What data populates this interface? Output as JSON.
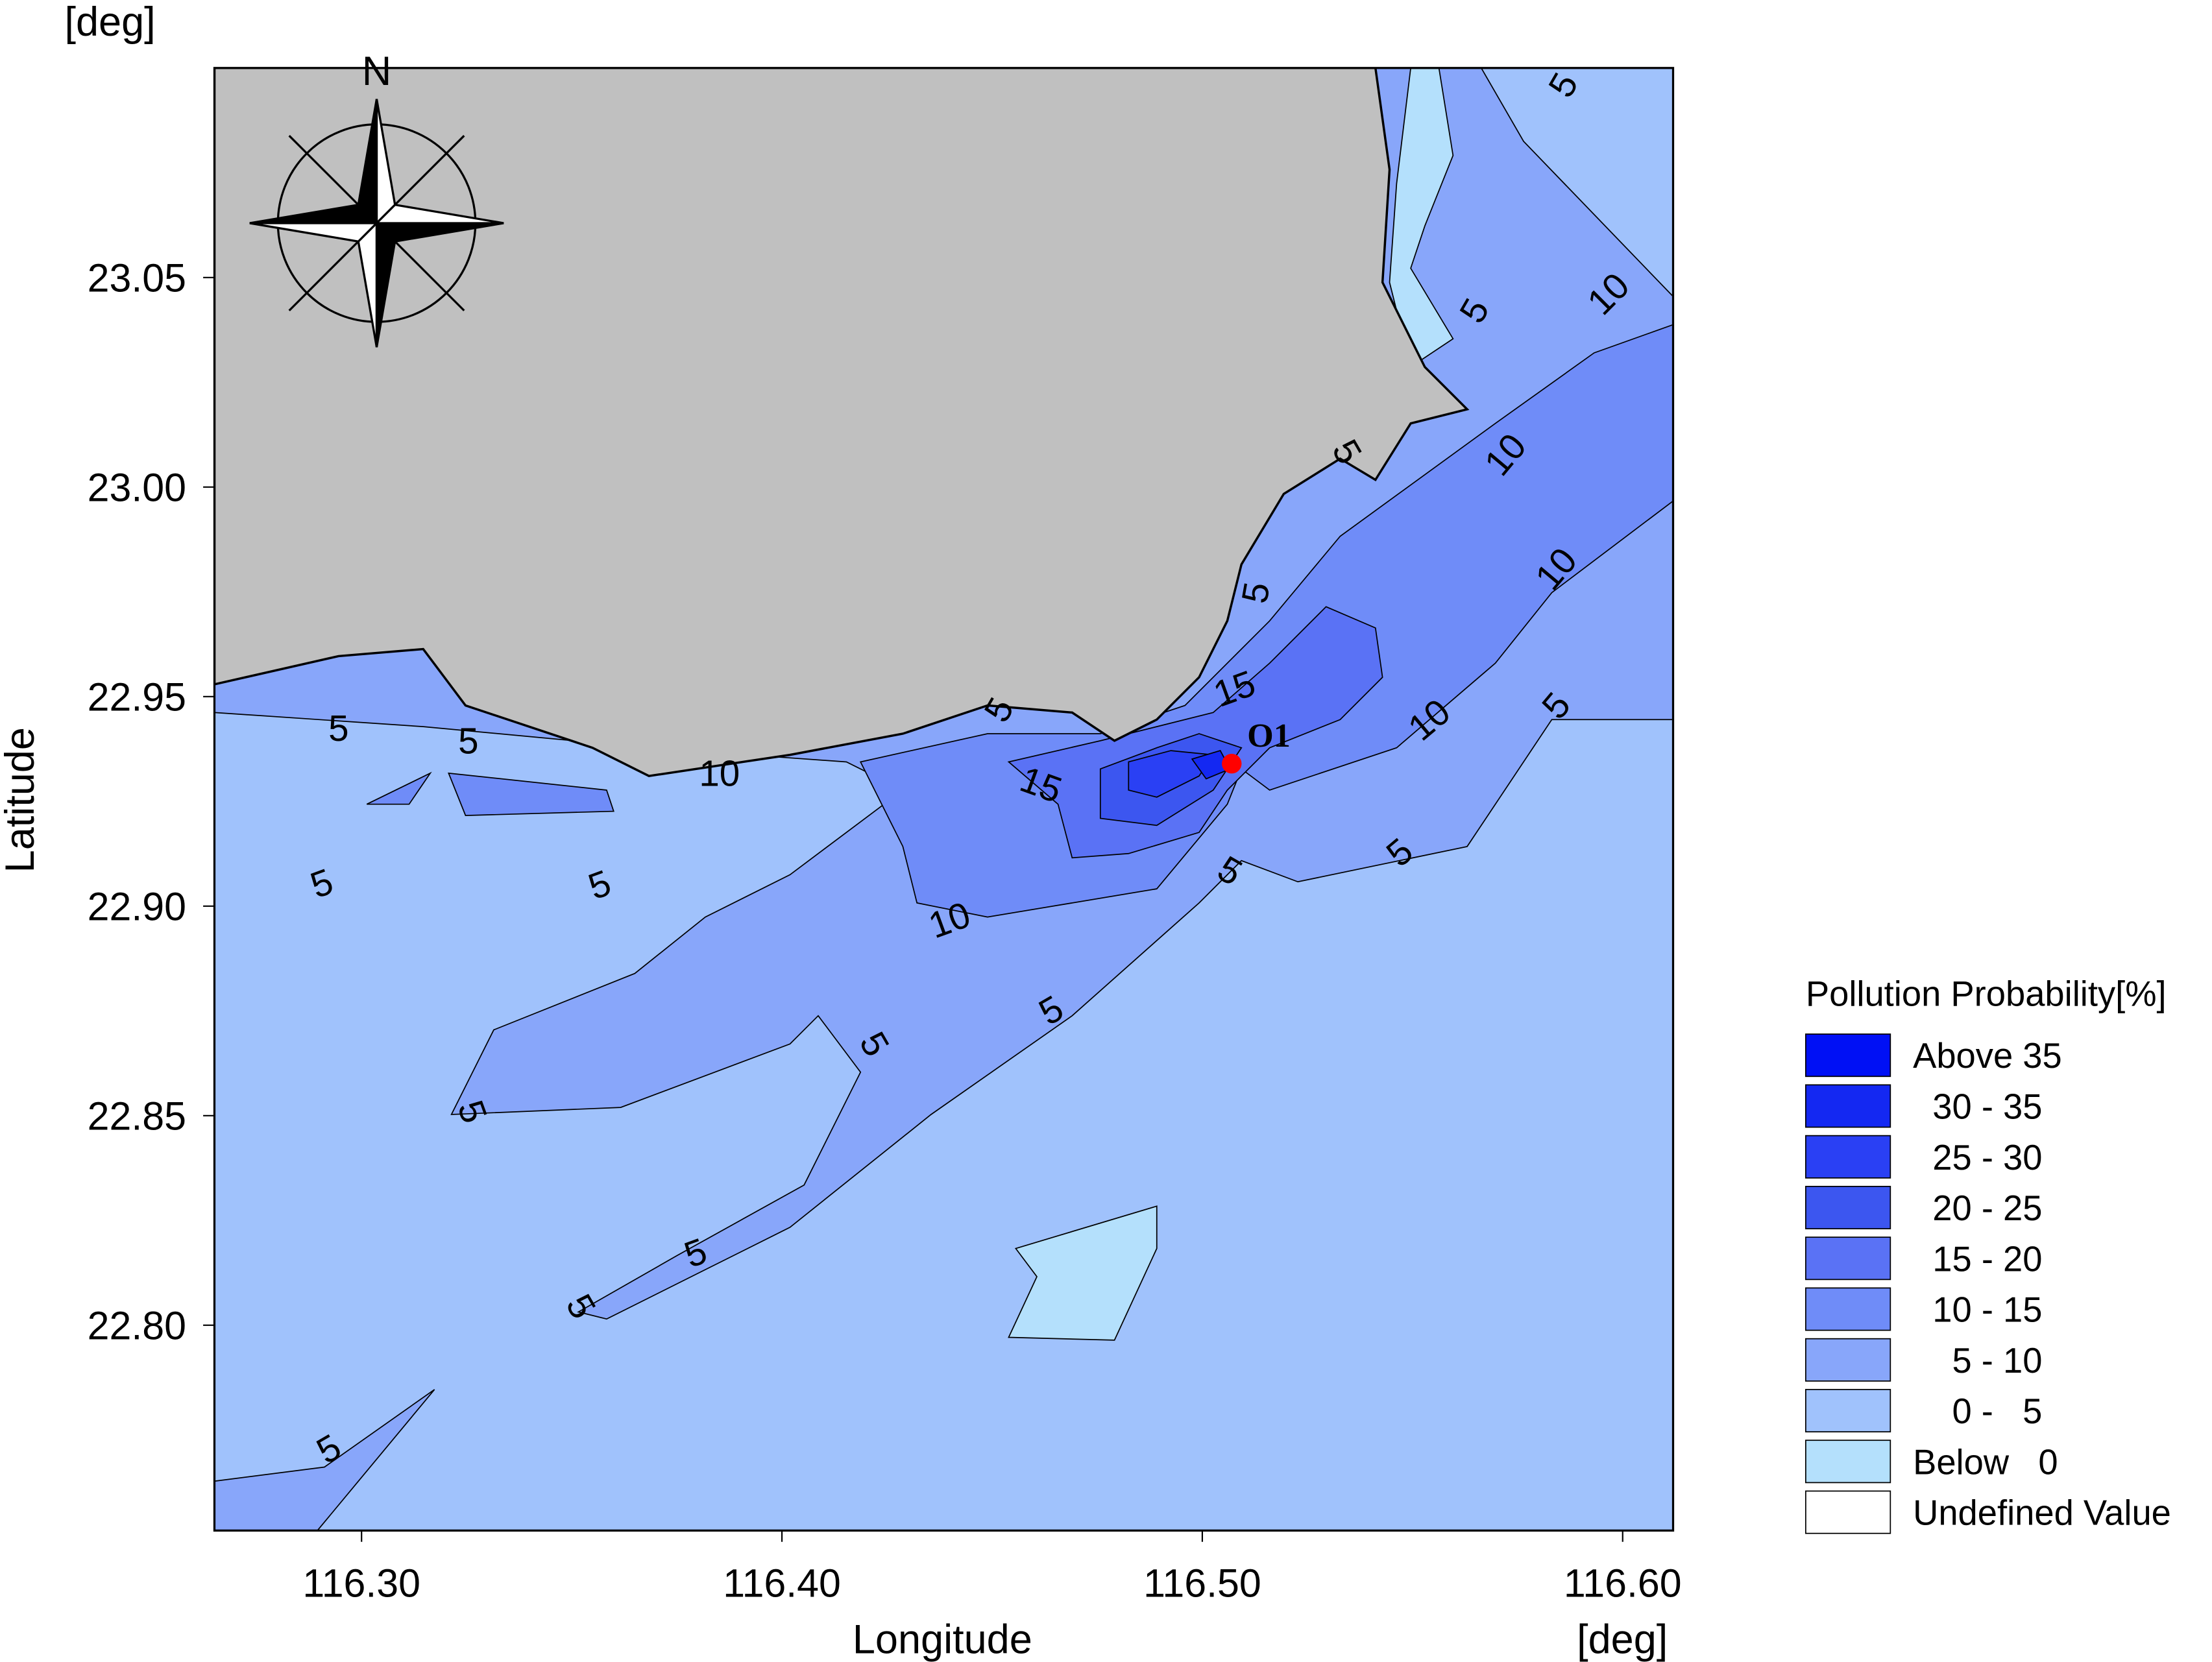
{
  "chart_data": {
    "type": "contour-map",
    "x_label": "Longitude",
    "y_label": "Latitude",
    "x_unit": "[deg]",
    "y_unit": "[deg]",
    "xlim": [
      116.265,
      116.612
    ],
    "ylim": [
      22.751,
      23.1
    ],
    "xticks": [
      {
        "value": 116.3,
        "label": "116.30"
      },
      {
        "value": 116.4,
        "label": "116.40"
      },
      {
        "value": 116.5,
        "label": "116.50"
      },
      {
        "value": 116.6,
        "label": "116.60"
      }
    ],
    "yticks": [
      {
        "value": 22.8,
        "label": "22.80"
      },
      22.85,
      {
        "value": 22.9,
        "label": "22.90"
      },
      22.95,
      {
        "value": 23,
        "label": "23.00"
      },
      23.05
    ],
    "compass": {
      "label": "N"
    },
    "points": [
      {
        "label": "O1",
        "lon": 116.507,
        "lat": 22.934,
        "color": "#ff0000"
      }
    ],
    "contour_labels": [
      "5",
      "5",
      "10",
      "5",
      "10",
      "10",
      "5",
      "15",
      "10",
      "5",
      "5",
      "5",
      "5",
      "10",
      "15",
      "5",
      "5",
      "5",
      "5",
      "10",
      "5",
      "5",
      "5",
      "5",
      "5",
      "5"
    ],
    "legend": {
      "title": "Pollution Probability[%]",
      "entries": [
        {
          "label": "Above 35",
          "color": "#0010f5"
        },
        {
          "label": "  30 - 35",
          "color": "#1428f2"
        },
        {
          "label": "  25 - 30",
          "color": "#2a40f4"
        },
        {
          "label": "  20 - 25",
          "color": "#3c56f0"
        },
        {
          "label": "  15 - 20",
          "color": "#5a72f5"
        },
        {
          "label": "  10 - 15",
          "color": "#6f8cf8"
        },
        {
          "label": "    5 - 10",
          "color": "#88a6fa"
        },
        {
          "label": "    0 -   5",
          "color": "#a0c2fc"
        },
        {
          "label": "Below   0",
          "color": "#b4e0fc"
        },
        {
          "label": "Undefined Value",
          "color": "#ffffff"
        }
      ]
    }
  }
}
